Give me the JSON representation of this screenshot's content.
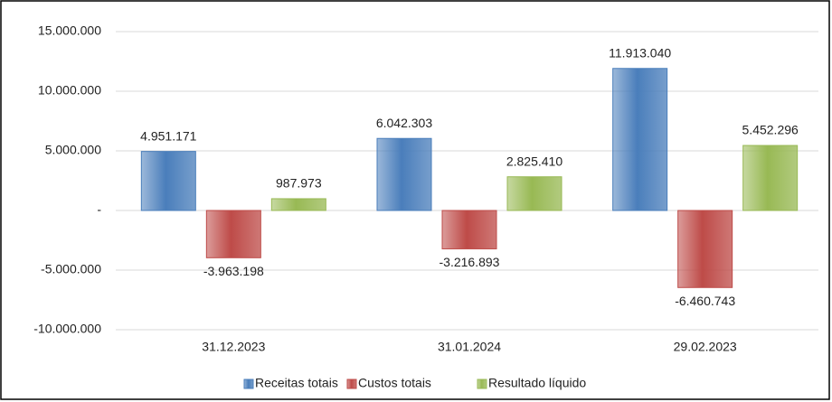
{
  "chart_data": {
    "type": "bar",
    "categories": [
      "31.12.2023",
      "31.01.2024",
      "29.02.2023"
    ],
    "series": [
      {
        "name": "Receitas totais",
        "color": "#4a7ebb",
        "values": [
          4951171,
          6042303,
          11913040
        ],
        "value_labels": [
          "4.951.171",
          "6.042.303",
          "11.913.040"
        ]
      },
      {
        "name": "Custos totais",
        "color": "#be4b48",
        "values": [
          -3963198,
          -3216893,
          -6460743
        ],
        "value_labels": [
          "-3.963.198",
          "-3.216.893",
          "-6.460.743"
        ]
      },
      {
        "name": "Resultado líquido",
        "color": "#98b954",
        "values": [
          987973,
          2825410,
          5452296
        ],
        "value_labels": [
          "987.973",
          "2.825.410",
          "5.452.296"
        ]
      }
    ],
    "ylim": [
      -10000000,
      15000000
    ],
    "yticks": [
      {
        "value": -10000000,
        "label": "-10.000.000"
      },
      {
        "value": -5000000,
        "label": "-5.000.000"
      },
      {
        "value": 0,
        "label": "-"
      },
      {
        "value": 5000000,
        "label": "5.000.000"
      },
      {
        "value": 10000000,
        "label": "10.000.000"
      },
      {
        "value": 15000000,
        "label": "15.000.000"
      }
    ],
    "grid": true,
    "legend": "bottom"
  }
}
